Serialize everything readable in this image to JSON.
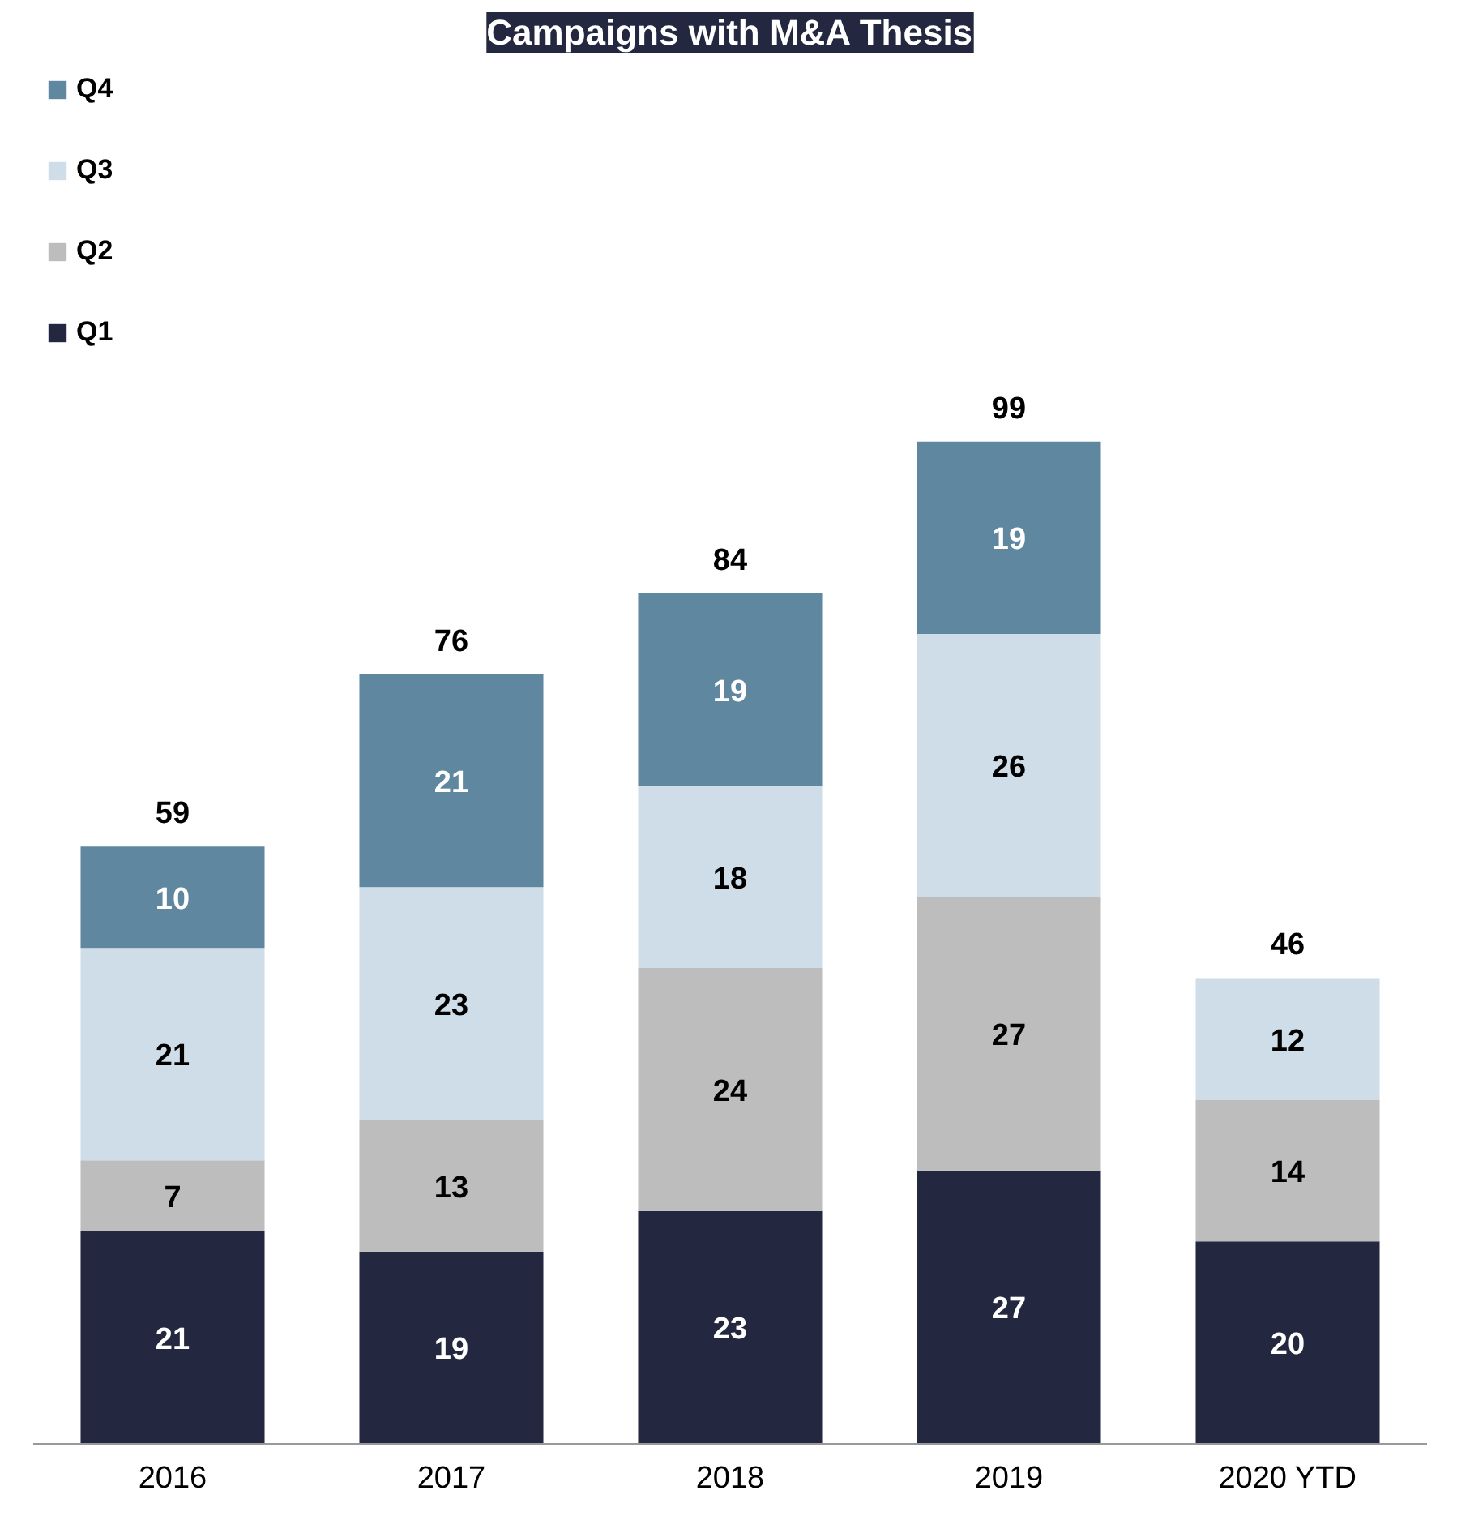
{
  "chart_data": {
    "type": "bar",
    "title": "Campaigns with M&A Thesis",
    "categories": [
      "2016",
      "2017",
      "2018",
      "2019",
      "2020 YTD"
    ],
    "stacked": true,
    "data_labels": true,
    "legend": "top left",
    "grid": false,
    "series": [
      {
        "name": "Q1",
        "color": "#232840",
        "values": [
          21,
          19,
          23,
          27,
          20
        ]
      },
      {
        "name": "Q2",
        "color": "#bdbdbd",
        "values": [
          7,
          13,
          24,
          27,
          14
        ]
      },
      {
        "name": "Q3",
        "color": "#cfdde8",
        "values": [
          21,
          23,
          18,
          26,
          12
        ]
      },
      {
        "name": "Q4",
        "color": "#5f87a0",
        "values": [
          10,
          21,
          19,
          19,
          null
        ]
      }
    ],
    "totals": [
      "59",
      "76",
      "84",
      "99",
      "46"
    ]
  }
}
